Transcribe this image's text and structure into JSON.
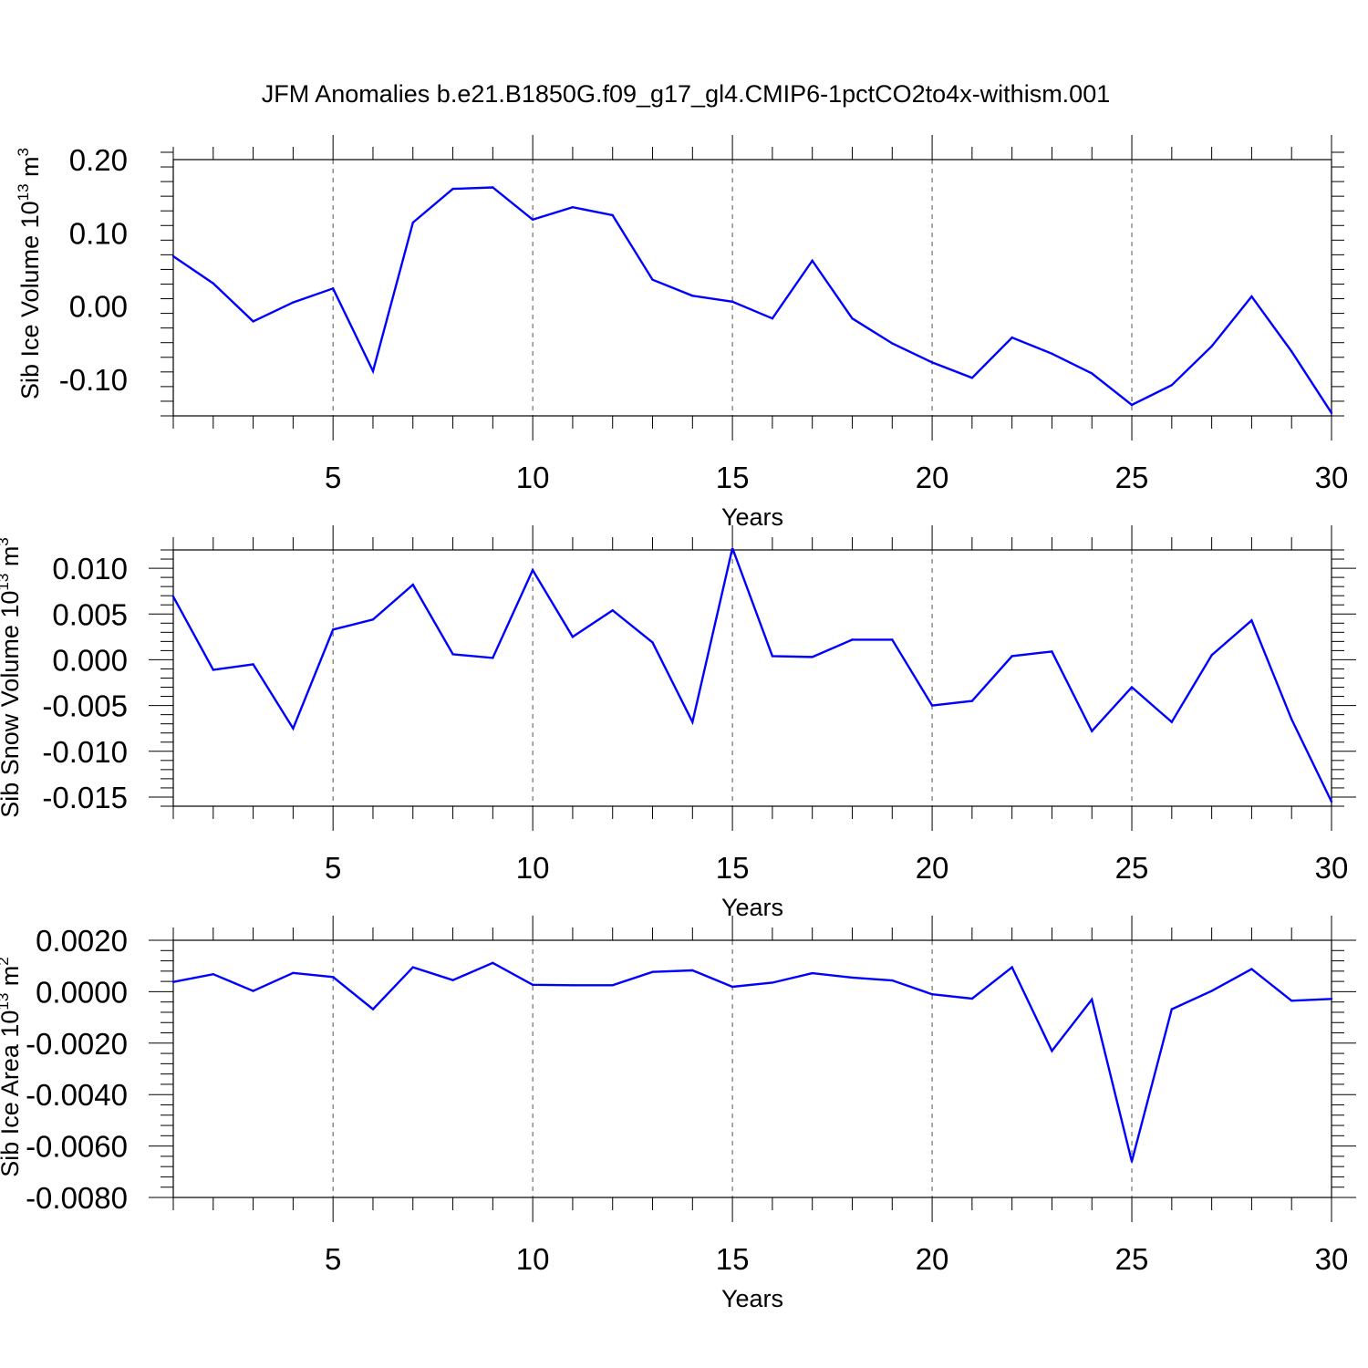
{
  "figure_title": "JFM Anomalies b.e21.B1850G.f09_g17_gl4.CMIP6-1pctCO2to4x-withism.001",
  "colors": {
    "line": "#0000ff",
    "axis": "#000000",
    "grid": "#555555"
  },
  "chart_data": [
    {
      "type": "line",
      "title": "JFM Anomalies b.e21.B1850G.f09_g17_gl4.CMIP6-1pctCO2to4x-withism.001",
      "xlabel": "Years",
      "ylabel_main": "Sib Ice Volume 10",
      "ylabel_exp": "13",
      "ylabel_unit": " m",
      "ylabel_unit_exp": "3",
      "xlim": [
        1,
        30
      ],
      "ylim": [
        -0.15,
        0.2
      ],
      "xticks": [
        5,
        10,
        15,
        20,
        25,
        30
      ],
      "xtick_labels": [
        "5",
        "10",
        "15",
        "20",
        "25",
        "30"
      ],
      "yticks": [
        0.2,
        0.1,
        0.0,
        -0.1
      ],
      "ytick_labels": [
        "0.20",
        "0.10",
        "0.00",
        "-0.10"
      ],
      "grid": "vertical dashed at major x ticks",
      "x": [
        1,
        2,
        3,
        4,
        5,
        6,
        7,
        8,
        9,
        10,
        11,
        12,
        13,
        14,
        15,
        16,
        17,
        18,
        19,
        20,
        21,
        22,
        23,
        24,
        25,
        26,
        27,
        28,
        29,
        30
      ],
      "y": [
        0.068,
        0.031,
        -0.021,
        0.005,
        0.024,
        -0.089,
        0.114,
        0.16,
        0.162,
        0.118,
        0.135,
        0.124,
        0.036,
        0.014,
        0.006,
        -0.017,
        0.062,
        -0.017,
        -0.051,
        -0.077,
        -0.098,
        -0.043,
        -0.065,
        -0.092,
        -0.135,
        -0.108,
        -0.055,
        0.013,
        -0.062,
        -0.146
      ]
    },
    {
      "type": "line",
      "xlabel": "Years",
      "ylabel_main": "Sib Snow Volume 10",
      "ylabel_exp": "13",
      "ylabel_unit": " m",
      "ylabel_unit_exp": "3",
      "xlim": [
        1,
        30
      ],
      "ylim": [
        -0.016,
        0.012
      ],
      "xticks": [
        5,
        10,
        15,
        20,
        25,
        30
      ],
      "xtick_labels": [
        "5",
        "10",
        "15",
        "20",
        "25",
        "30"
      ],
      "yticks": [
        0.01,
        0.005,
        0.0,
        -0.005,
        -0.01,
        -0.015
      ],
      "ytick_labels": [
        "0.010",
        "0.005",
        "0.000",
        "-0.005",
        "-0.010",
        "-0.015"
      ],
      "grid": "vertical dashed at major x ticks",
      "x": [
        1,
        2,
        3,
        4,
        5,
        6,
        7,
        8,
        9,
        10,
        11,
        12,
        13,
        14,
        15,
        16,
        17,
        18,
        19,
        20,
        21,
        22,
        23,
        24,
        25,
        26,
        27,
        28,
        29,
        30
      ],
      "y": [
        0.0069,
        -0.0011,
        -0.0005,
        -0.0075,
        0.0033,
        0.0044,
        0.0082,
        0.0006,
        0.0002,
        0.0098,
        0.0025,
        0.0054,
        0.0019,
        -0.0068,
        0.0122,
        0.0004,
        0.0003,
        0.0022,
        0.0022,
        -0.005,
        -0.0045,
        0.0004,
        0.0009,
        -0.0078,
        -0.003,
        -0.0068,
        0.0005,
        0.0043,
        -0.0065,
        -0.0155
      ]
    },
    {
      "type": "line",
      "xlabel": "Years",
      "ylabel_main": "Sib Ice Area 10",
      "ylabel_exp": "13",
      "ylabel_unit": " m",
      "ylabel_unit_exp": "2",
      "xlim": [
        1,
        30
      ],
      "ylim": [
        -0.008,
        0.002
      ],
      "xticks": [
        5,
        10,
        15,
        20,
        25,
        30
      ],
      "xtick_labels": [
        "5",
        "10",
        "15",
        "20",
        "25",
        "30"
      ],
      "yticks": [
        0.002,
        0.0,
        -0.002,
        -0.004,
        -0.006,
        -0.008
      ],
      "ytick_labels": [
        "0.0020",
        "0.0000",
        "-0.0020",
        "-0.0040",
        "-0.0060",
        "-0.0080"
      ],
      "grid": "vertical dashed at major x ticks",
      "x": [
        1,
        2,
        3,
        4,
        5,
        6,
        7,
        8,
        9,
        10,
        11,
        12,
        13,
        14,
        15,
        16,
        17,
        18,
        19,
        20,
        21,
        22,
        23,
        24,
        25,
        26,
        27,
        28,
        29,
        30
      ],
      "y": [
        0.00038,
        0.00068,
        3e-05,
        0.00073,
        0.00057,
        -0.00068,
        0.00095,
        0.00045,
        0.00112,
        0.00027,
        0.00025,
        0.00025,
        0.00077,
        0.00083,
        0.00019,
        0.00035,
        0.00072,
        0.00055,
        0.00044,
        -0.0001,
        -0.00027,
        0.00095,
        -0.0023,
        -0.0003,
        -0.0066,
        -0.00068,
        3e-05,
        0.00088,
        -0.00035,
        -0.00028
      ]
    }
  ]
}
